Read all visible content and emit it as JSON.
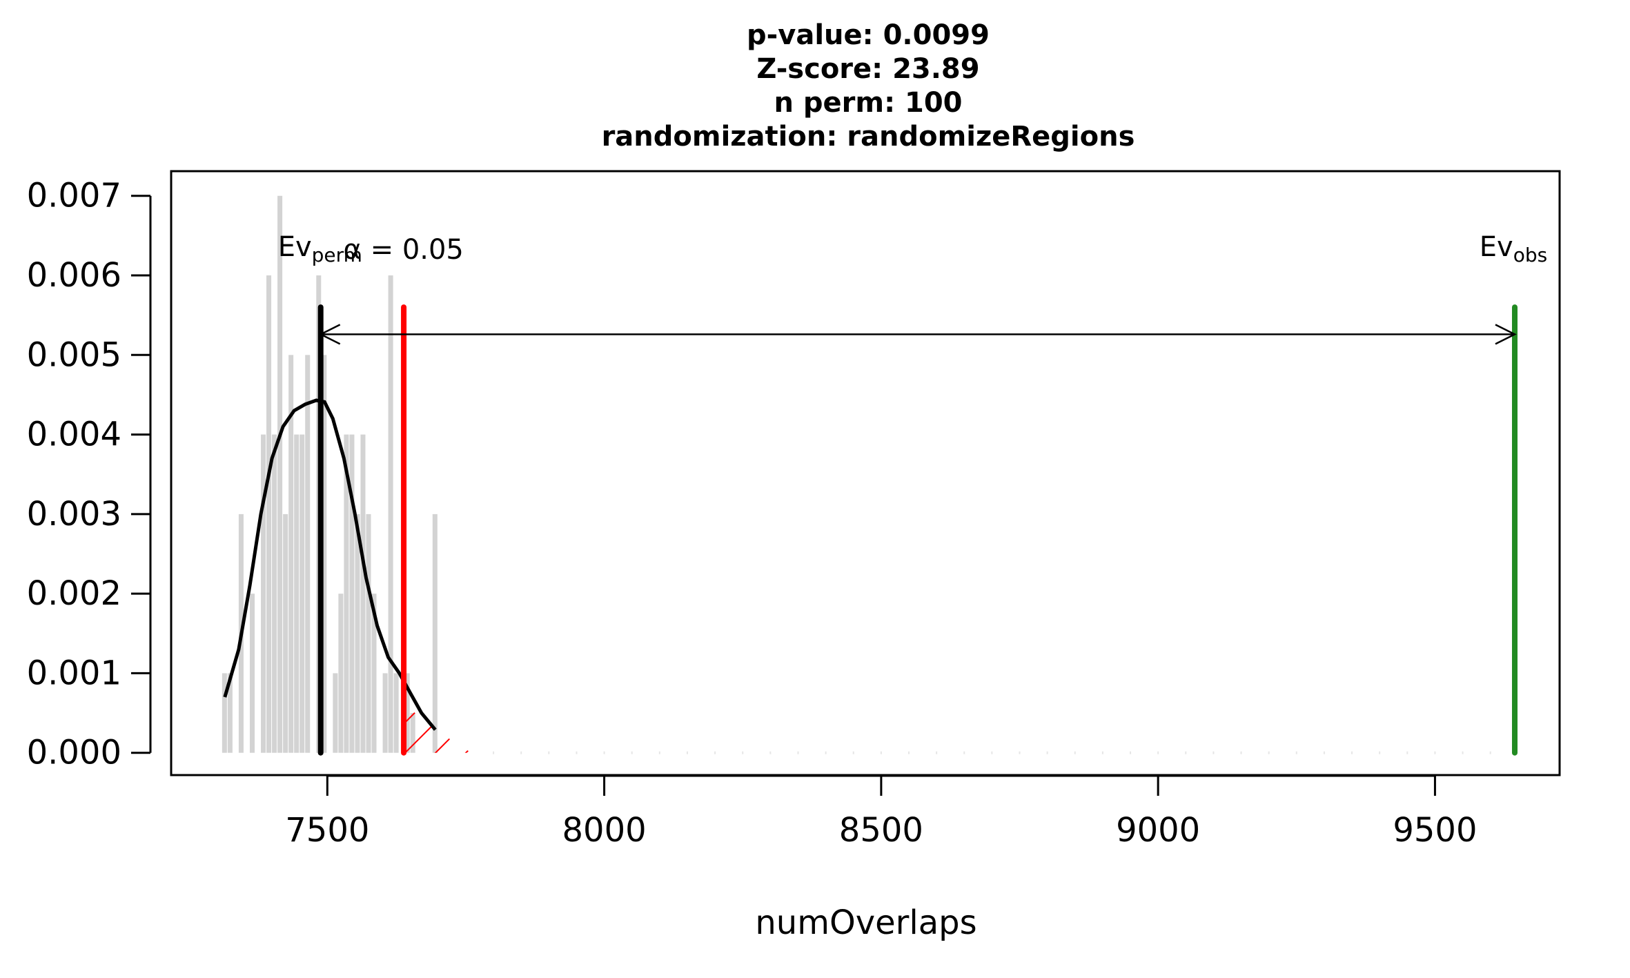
{
  "chart_data": {
    "type": "bar",
    "title_lines": [
      "p-value:  0.0099",
      "Z-score:  23.89",
      "n perm:  100",
      "randomization:  randomizeRegions"
    ],
    "xlabel": "numOverlaps",
    "ylabel": "",
    "xlim": [
      7218,
      9725
    ],
    "ylim": [
      -0.00028,
      0.00731
    ],
    "x_ticks": [
      7500,
      8000,
      8500,
      9000,
      9500
    ],
    "x_tick_labels": [
      "7500",
      "8000",
      "8500",
      "9000",
      "9500"
    ],
    "y_ticks": [
      0,
      0.001,
      0.002,
      0.003,
      0.004,
      0.005,
      0.006,
      0.007
    ],
    "y_tick_labels": [
      "0.000",
      "0.001",
      "0.002",
      "0.003",
      "0.004",
      "0.005",
      "0.006",
      "0.007"
    ],
    "histogram": {
      "color": "#d3d3d3",
      "bin_width": 10,
      "bars": [
        {
          "x0": 7310,
          "density": 0.001
        },
        {
          "x0": 7320,
          "density": 0.001
        },
        {
          "x0": 7340,
          "density": 0.003
        },
        {
          "x0": 7360,
          "density": 0.002
        },
        {
          "x0": 7380,
          "density": 0.004
        },
        {
          "x0": 7390,
          "density": 0.006
        },
        {
          "x0": 7400,
          "density": 0.004
        },
        {
          "x0": 7410,
          "density": 0.007
        },
        {
          "x0": 7420,
          "density": 0.003
        },
        {
          "x0": 7430,
          "density": 0.005
        },
        {
          "x0": 7440,
          "density": 0.004
        },
        {
          "x0": 7450,
          "density": 0.004
        },
        {
          "x0": 7460,
          "density": 0.005
        },
        {
          "x0": 7480,
          "density": 0.006
        },
        {
          "x0": 7490,
          "density": 0.005
        },
        {
          "x0": 7510,
          "density": 0.001
        },
        {
          "x0": 7520,
          "density": 0.002
        },
        {
          "x0": 7530,
          "density": 0.004
        },
        {
          "x0": 7540,
          "density": 0.004
        },
        {
          "x0": 7550,
          "density": 0.003
        },
        {
          "x0": 7560,
          "density": 0.004
        },
        {
          "x0": 7570,
          "density": 0.003
        },
        {
          "x0": 7580,
          "density": 0.002
        },
        {
          "x0": 7600,
          "density": 0.001
        },
        {
          "x0": 7610,
          "density": 0.006
        },
        {
          "x0": 7620,
          "density": 0.001
        },
        {
          "x0": 7640,
          "density": 0.001
        },
        {
          "x0": 7650,
          "density": 0.0005
        },
        {
          "x0": 7690,
          "density": 0.003
        }
      ]
    },
    "density_curve": {
      "color": "#000000",
      "points": [
        [
          7315,
          0.0007
        ],
        [
          7340,
          0.0013
        ],
        [
          7360,
          0.0021
        ],
        [
          7380,
          0.003
        ],
        [
          7400,
          0.0037
        ],
        [
          7420,
          0.0041
        ],
        [
          7440,
          0.0043
        ],
        [
          7460,
          0.00438
        ],
        [
          7480,
          0.00443
        ],
        [
          7495,
          0.00441
        ],
        [
          7510,
          0.0042
        ],
        [
          7530,
          0.0037
        ],
        [
          7550,
          0.003
        ],
        [
          7570,
          0.0022
        ],
        [
          7590,
          0.0016
        ],
        [
          7610,
          0.0012
        ],
        [
          7630,
          0.001
        ],
        [
          7650,
          0.00075
        ],
        [
          7670,
          0.0005
        ],
        [
          7695,
          0.00029
        ]
      ]
    },
    "ev_perm": {
      "x": 7488,
      "color": "#000000",
      "label": "Ev",
      "label_sub": "perm"
    },
    "alpha_line": {
      "x": 7638,
      "color": "#ff0000",
      "label": "α = 0.05"
    },
    "ev_obs": {
      "x": 9644,
      "color": "#228b22",
      "label": "Ev",
      "label_sub": "obs"
    },
    "marker_line_top": 0.0056,
    "arrow": {
      "from": 7488,
      "to": 9644,
      "y": 0.00526
    },
    "tail_shading": {
      "from": 7638,
      "to": 7760,
      "color": "#ff0000"
    },
    "rug_points": [
      7800,
      7850,
      7900,
      7950,
      8000,
      8050,
      8100,
      8150,
      8200,
      8250,
      8300,
      8350,
      8400,
      8450,
      8500,
      8550,
      8600,
      8650,
      8700,
      8750,
      8800,
      8850,
      8900,
      8950,
      9000,
      9050,
      9100,
      9150,
      9200,
      9250,
      9300,
      9350,
      9400,
      9450,
      9500,
      9550,
      9600
    ]
  }
}
